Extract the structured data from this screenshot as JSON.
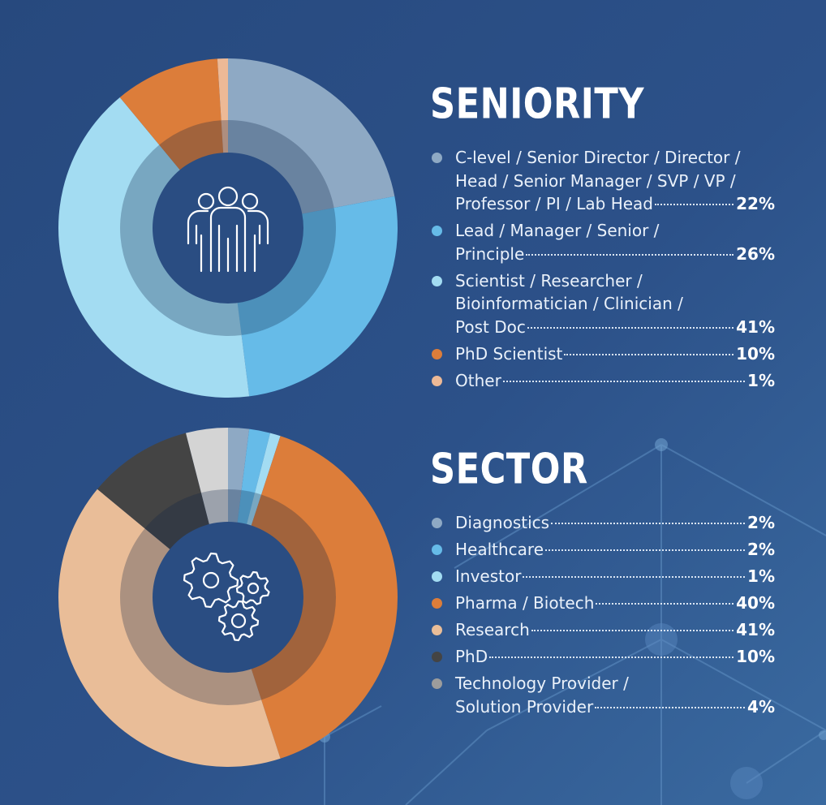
{
  "chart_data": [
    {
      "type": "pie",
      "variant": "donut",
      "title": "SENIORITY",
      "center_icon": "people-icon",
      "categories": [
        "C-level / Senior Director / Director / Head / Senior Manager / SVP / VP / Professor / PI / Lab Head",
        "Lead / Manager / Senior / Principle",
        "Scientist / Researcher / Bioinformatician / Clinician / Post Doc",
        "PhD Scientist",
        "Other"
      ],
      "values": [
        22,
        26,
        41,
        10,
        1
      ],
      "colors": [
        "#8ea9c4",
        "#66bbe8",
        "#a3dcf2",
        "#dc7d3a",
        "#edb996"
      ],
      "legend": [
        {
          "lines": [
            "C-level / Senior Director / Director /",
            "Head / Senior Manager / SVP / VP /",
            "Professor / PI / Lab Head"
          ],
          "value": "22%",
          "color": "#8ea9c4"
        },
        {
          "lines": [
            "Lead / Manager / Senior /",
            "Principle"
          ],
          "value": "26%",
          "color": "#66bbe8"
        },
        {
          "lines": [
            "Scientist / Researcher /",
            "Bioinformatician / Clinician /",
            "Post Doc"
          ],
          "value": "41%",
          "color": "#a3dcf2"
        },
        {
          "lines": [
            "PhD Scientist"
          ],
          "value": "10%",
          "color": "#dc7d3a"
        },
        {
          "lines": [
            "Other"
          ],
          "value": "1%",
          "color": "#edb996"
        }
      ],
      "legend_position": "right"
    },
    {
      "type": "pie",
      "variant": "donut",
      "title": "SECTOR",
      "center_icon": "gears-icon",
      "categories": [
        "Diagnostics",
        "Healthcare",
        "Investor",
        "Pharma / Biotech",
        "Research",
        "PhD",
        "Technology Provider / Solution Provider"
      ],
      "values": [
        2,
        2,
        1,
        40,
        41,
        10,
        4
      ],
      "colors": [
        "#8ea9c4",
        "#66bbe8",
        "#a3dcf2",
        "#dc7d3a",
        "#e9bd98",
        "#444444",
        "#d4d4d4"
      ],
      "legend": [
        {
          "lines": [
            "Diagnostics"
          ],
          "value": "2%",
          "color": "#8ea9c4"
        },
        {
          "lines": [
            "Healthcare"
          ],
          "value": "2%",
          "color": "#66bbe8"
        },
        {
          "lines": [
            "Investor"
          ],
          "value": "1%",
          "color": "#a3dcf2"
        },
        {
          "lines": [
            "Pharma / Biotech"
          ],
          "value": "40%",
          "color": "#dc7d3a"
        },
        {
          "lines": [
            "Research"
          ],
          "value": "41%",
          "color": "#e9bd98"
        },
        {
          "lines": [
            "PhD"
          ],
          "value": "10%",
          "color": "#444444"
        },
        {
          "lines": [
            "Technology Provider /",
            "Solution Provider"
          ],
          "value": "4%",
          "color": "#9c9c9c"
        }
      ],
      "legend_position": "right"
    }
  ]
}
